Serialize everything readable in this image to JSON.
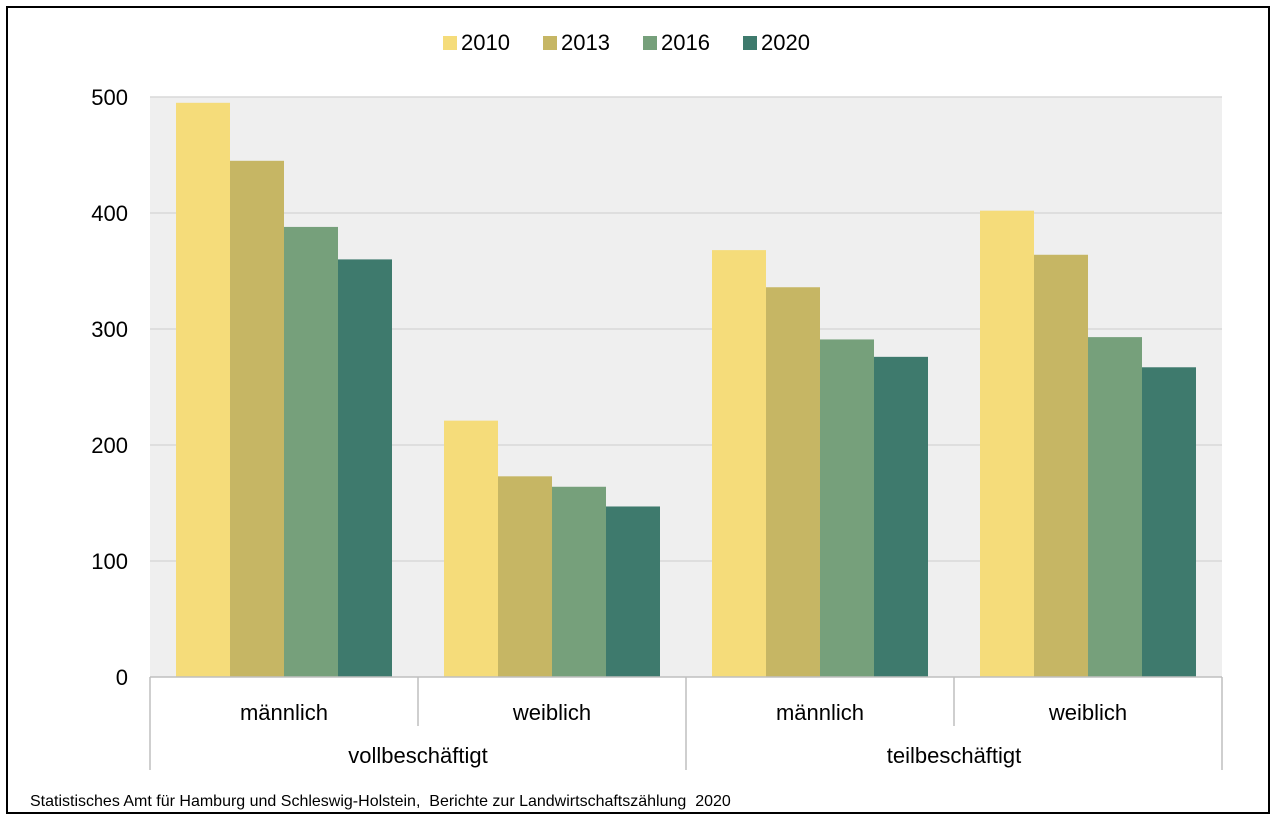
{
  "chart_data": {
    "type": "bar",
    "categories": [
      "männlich",
      "weiblich",
      "männlich",
      "weiblich"
    ],
    "groups": [
      {
        "label": "vollbeschäftigt",
        "categories": [
          "männlich",
          "weiblich"
        ]
      },
      {
        "label": "teilbeschäftigt",
        "categories": [
          "männlich",
          "weiblich"
        ]
      }
    ],
    "series": [
      {
        "name": "2010",
        "color": "#F5DC7A",
        "values": [
          495,
          221,
          368,
          402
        ]
      },
      {
        "name": "2013",
        "color": "#C6B664",
        "values": [
          445,
          173,
          336,
          364
        ]
      },
      {
        "name": "2016",
        "color": "#76A07B",
        "values": [
          388,
          164,
          291,
          293
        ]
      },
      {
        "name": "2020",
        "color": "#3E7A6D",
        "values": [
          360,
          147,
          276,
          267
        ]
      }
    ],
    "ylim": [
      0,
      500
    ],
    "yticks": [
      "0",
      "100",
      "200",
      "300",
      "400",
      "500"
    ],
    "grid": true,
    "legend_position": "top",
    "plot_background": "#EFEFEF",
    "grid_color": "#D8D8D8"
  },
  "source_note": "Statistisches Amt für Hamburg und Schleswig-Holstein,  Berichte zur Landwirtschaftszählung  2020"
}
